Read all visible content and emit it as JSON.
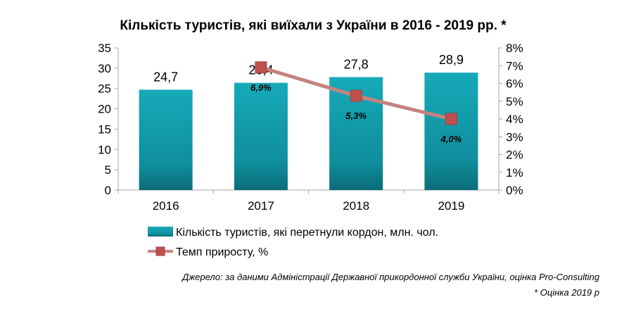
{
  "chart_data": {
    "type": "bar",
    "title": "Кількість туристів, які виїхали з України в 2016 - 2019 рр. *",
    "categories": [
      "2016",
      "2017",
      "2018",
      "2019"
    ],
    "series": [
      {
        "name": "Кількість туристів, які перетнули кордон, млн. чол.",
        "type": "bar",
        "axis": "left",
        "values": [
          24.7,
          26.4,
          27.8,
          28.9
        ],
        "labels": [
          "24,7",
          "26,4",
          "27,8",
          "28,9"
        ],
        "color": "#14a0b0"
      },
      {
        "name": "Темп приросту, %",
        "type": "line",
        "axis": "right",
        "values": [
          null,
          6.9,
          5.3,
          4.0
        ],
        "labels": [
          "",
          "6,9%",
          "5,3%",
          "4,0%"
        ],
        "color": "#c4827f",
        "marker_color": "#c0504d"
      }
    ],
    "ylim": [
      0,
      35
    ],
    "yticks": [
      "0",
      "5",
      "10",
      "15",
      "20",
      "25",
      "30",
      "35"
    ],
    "y2lim": [
      0,
      8
    ],
    "y2ticks": [
      "0%",
      "1%",
      "2%",
      "3%",
      "4%",
      "5%",
      "6%",
      "7%",
      "8%"
    ],
    "legend_position": "bottom",
    "grid": false
  },
  "footer": {
    "source": "Джерело: за даними Адміністрації Державної прикордонної служби України, оцінка Pro-Consulting",
    "note": "* Оцінка 2019 р"
  }
}
